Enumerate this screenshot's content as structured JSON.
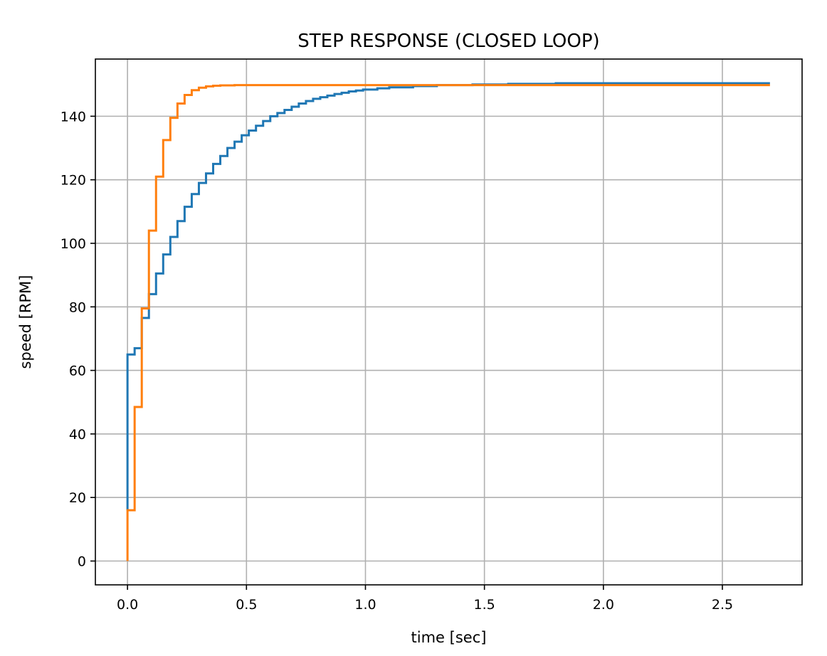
{
  "chart_data": {
    "type": "line",
    "title": "STEP RESPONSE (CLOSED LOOP)",
    "xlabel": "time [sec]",
    "ylabel": "speed [RPM]",
    "xlim": [
      -0.135,
      2.835
    ],
    "ylim": [
      -7.5,
      158
    ],
    "xticks": [
      0.0,
      0.5,
      1.0,
      1.5,
      2.0,
      2.5
    ],
    "xtick_labels": [
      "0.0",
      "0.5",
      "1.0",
      "1.5",
      "2.0",
      "2.5"
    ],
    "yticks": [
      0,
      20,
      40,
      60,
      80,
      100,
      120,
      140
    ],
    "ytick_labels": [
      "0",
      "20",
      "40",
      "60",
      "80",
      "100",
      "120",
      "140"
    ],
    "grid": true,
    "drawstyle": "steps-post",
    "series": [
      {
        "color": "#1f77b4",
        "x": [
          0.0,
          0.0,
          0.03,
          0.06,
          0.09,
          0.12,
          0.15,
          0.18,
          0.21,
          0.24,
          0.27,
          0.3,
          0.33,
          0.36,
          0.39,
          0.42,
          0.45,
          0.48,
          0.51,
          0.54,
          0.57,
          0.6,
          0.63,
          0.66,
          0.69,
          0.72,
          0.75,
          0.78,
          0.81,
          0.84,
          0.87,
          0.9,
          0.93,
          0.96,
          0.99,
          1.05,
          1.1,
          1.2,
          1.3,
          1.45,
          1.6,
          1.8,
          2.7
        ],
        "y": [
          16,
          65,
          67,
          76.5,
          84,
          90.5,
          96.5,
          102,
          107,
          111.5,
          115.5,
          119,
          122,
          125,
          127.5,
          130,
          132,
          134,
          135.5,
          137,
          138.5,
          140,
          141,
          142,
          143,
          144,
          144.8,
          145.5,
          146,
          146.5,
          147,
          147.4,
          147.8,
          148.1,
          148.4,
          148.8,
          149.1,
          149.5,
          149.8,
          150,
          150.2,
          150.4,
          150.4
        ]
      },
      {
        "color": "#ff7f0e",
        "x": [
          0.0,
          0.0,
          0.03,
          0.06,
          0.09,
          0.12,
          0.15,
          0.18,
          0.21,
          0.24,
          0.27,
          0.3,
          0.33,
          0.36,
          0.39,
          0.45,
          2.7
        ],
        "y": [
          0,
          16,
          48.5,
          79.5,
          104,
          121,
          132.5,
          139.5,
          144,
          146.7,
          148.2,
          149,
          149.4,
          149.6,
          149.7,
          149.8,
          149.8
        ]
      }
    ]
  }
}
